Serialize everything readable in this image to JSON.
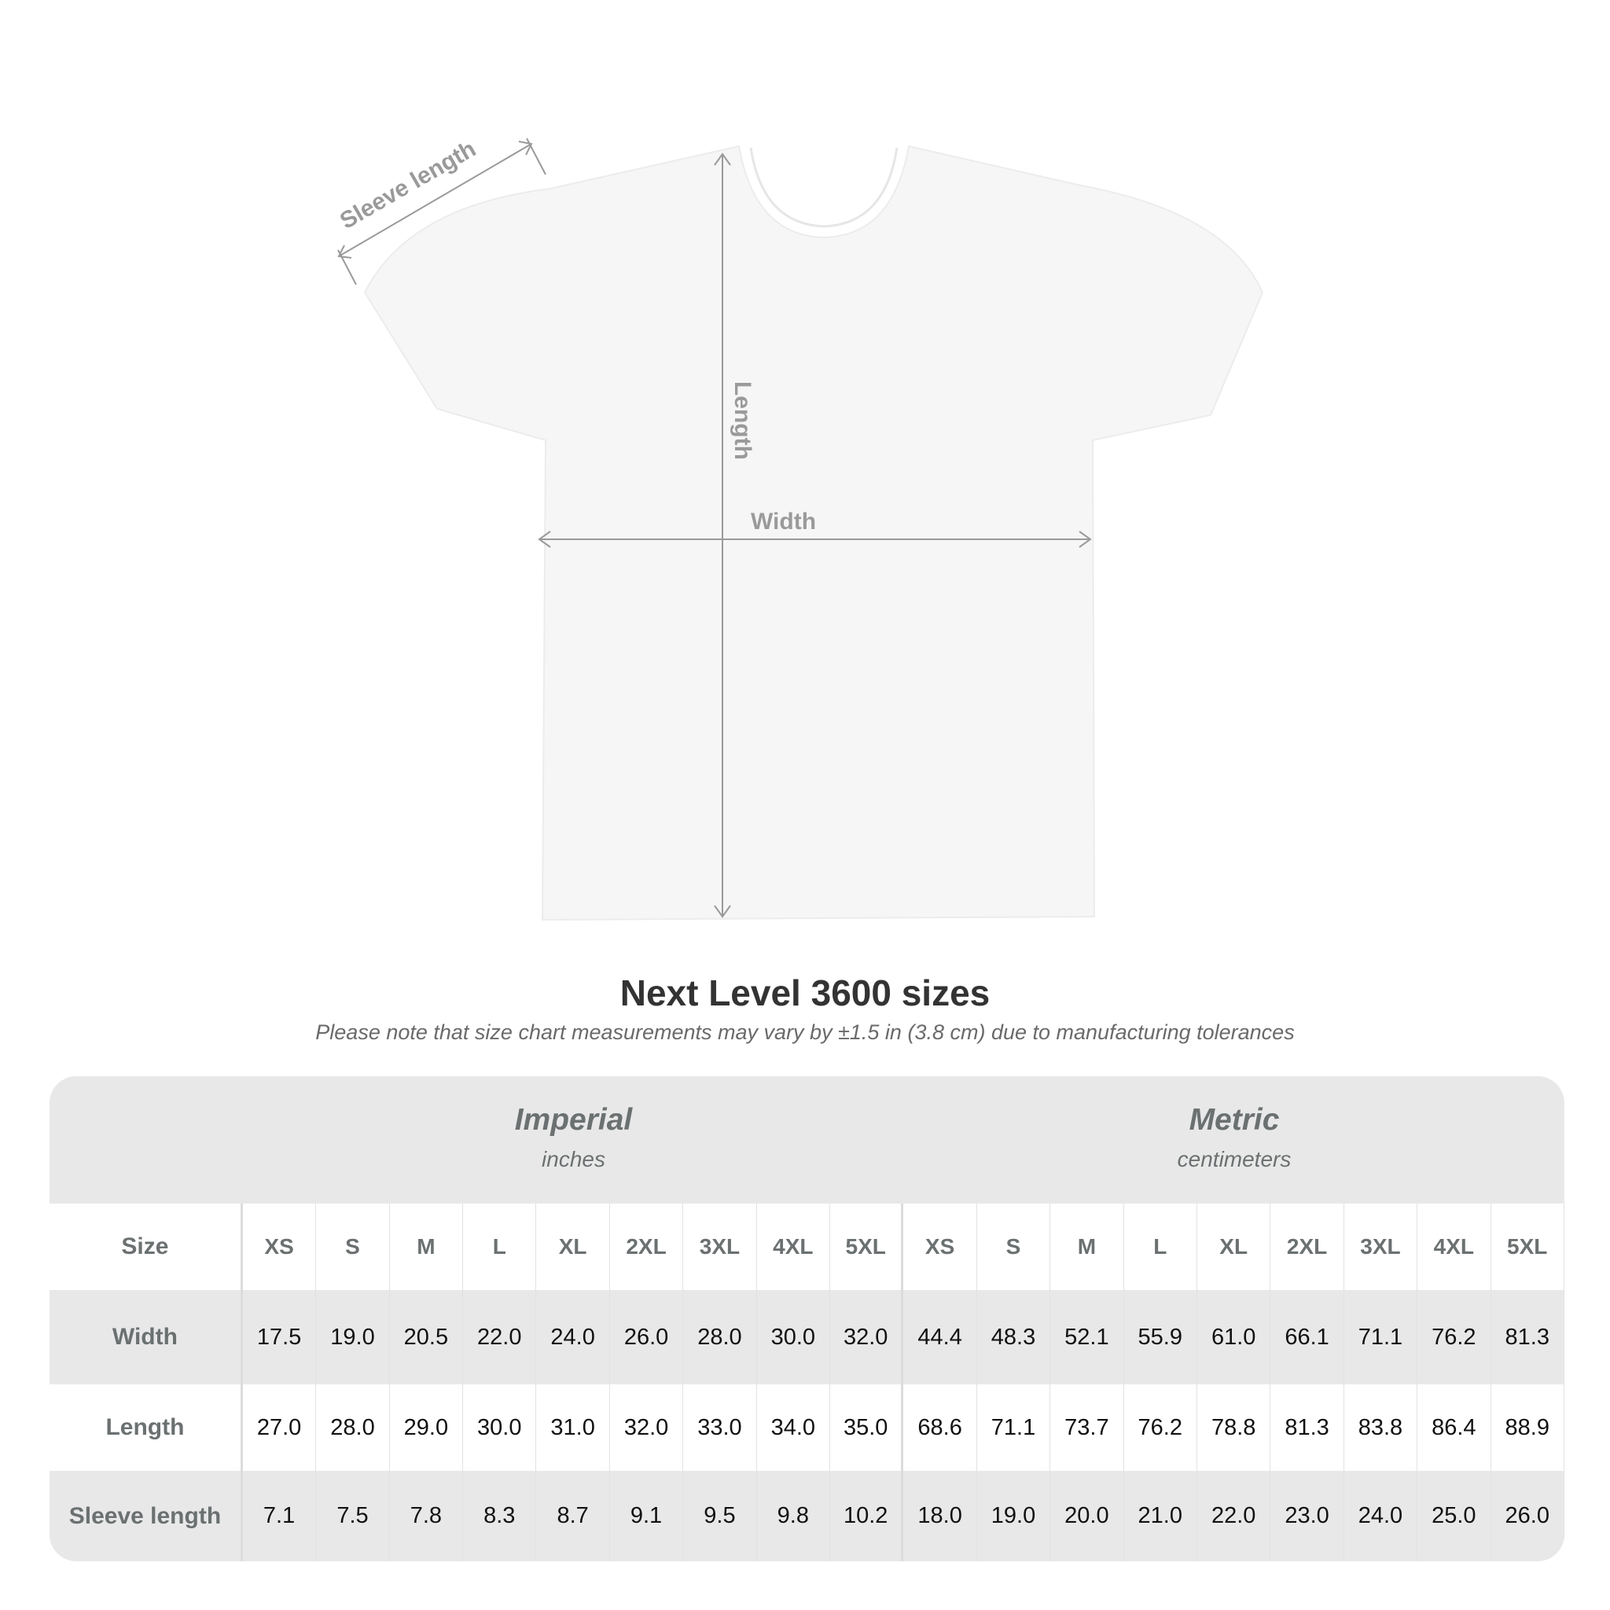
{
  "diagram": {
    "labels": {
      "sleeve": "Sleeve length",
      "length": "Length",
      "width": "Width"
    },
    "shirt_color": "#f6f6f6",
    "line_color": "#9a9a9a"
  },
  "title": "Next Level 3600 sizes",
  "note": "Please note that size chart measurements may vary by ±1.5 in (3.8 cm) due to manufacturing tolerances",
  "table": {
    "imperial": {
      "title": "Imperial",
      "unit": "inches"
    },
    "metric": {
      "title": "Metric",
      "unit": "centimeters"
    },
    "size_label": "Size",
    "sizes": [
      "XS",
      "S",
      "M",
      "L",
      "XL",
      "2XL",
      "3XL",
      "4XL",
      "5XL"
    ],
    "rows": [
      {
        "label": "Width",
        "imperial": [
          "17.5",
          "19.0",
          "20.5",
          "22.0",
          "24.0",
          "26.0",
          "28.0",
          "30.0",
          "32.0"
        ],
        "metric": [
          "44.4",
          "48.3",
          "52.1",
          "55.9",
          "61.0",
          "66.1",
          "71.1",
          "76.2",
          "81.3"
        ]
      },
      {
        "label": "Length",
        "imperial": [
          "27.0",
          "28.0",
          "29.0",
          "30.0",
          "31.0",
          "32.0",
          "33.0",
          "34.0",
          "35.0"
        ],
        "metric": [
          "68.6",
          "71.1",
          "73.7",
          "76.2",
          "78.8",
          "81.3",
          "83.8",
          "86.4",
          "88.9"
        ]
      },
      {
        "label": "Sleeve length",
        "imperial": [
          "7.1",
          "7.5",
          "7.8",
          "8.3",
          "8.7",
          "9.1",
          "9.5",
          "9.8",
          "10.2"
        ],
        "metric": [
          "18.0",
          "19.0",
          "20.0",
          "21.0",
          "22.0",
          "23.0",
          "24.0",
          "25.0",
          "26.0"
        ]
      }
    ]
  }
}
